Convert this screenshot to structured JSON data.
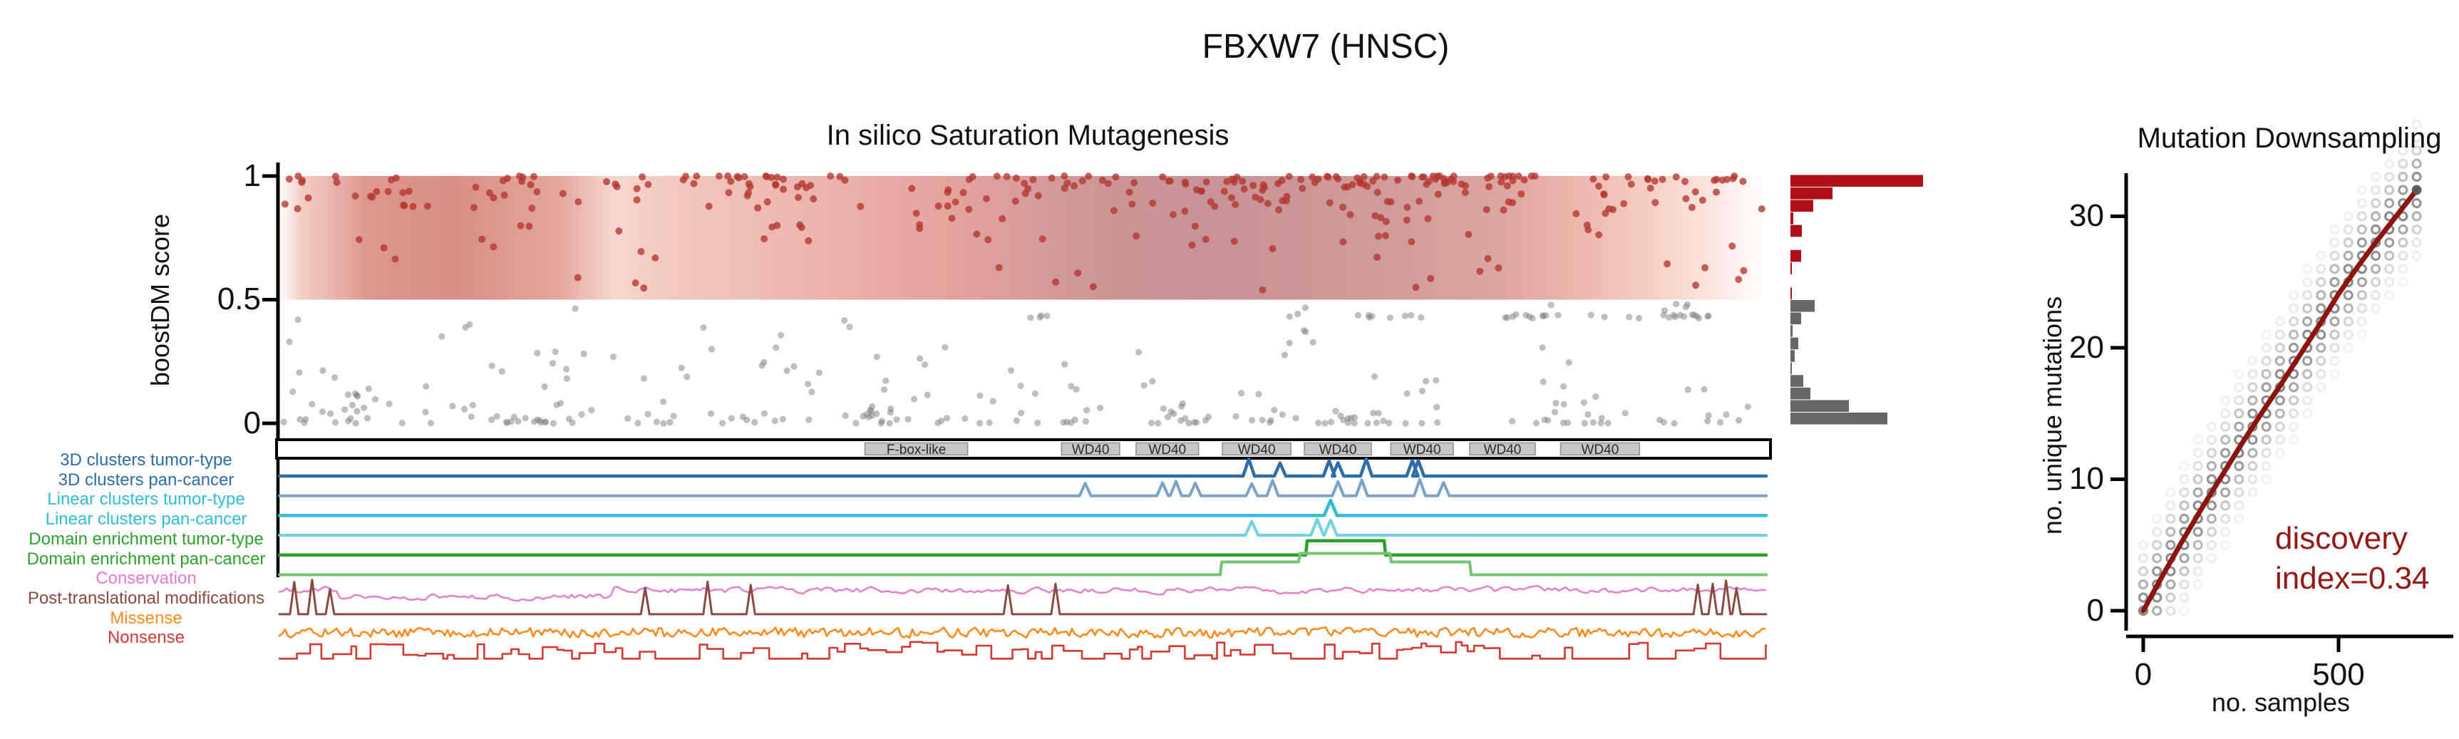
{
  "page": {
    "title": "FBXW7 (HNSC)"
  },
  "chart_data": [
    {
      "id": "saturation-mutagenesis",
      "type": "scatter",
      "title": "In silico Saturation Mutagenesis",
      "ylabel": "boostDM score",
      "ylim": [
        0,
        1
      ],
      "yticks": [
        {
          "value": 1,
          "label": "1"
        },
        {
          "value": 0.5,
          "label": "0.5"
        },
        {
          "value": 0,
          "label": "0"
        }
      ],
      "threshold": 0.5,
      "driver_color": "#b33630",
      "passenger_color": "#808080",
      "band_gradient": [
        [
          0.0,
          "#ffffff"
        ],
        [
          0.015,
          "#f3cdc6"
        ],
        [
          0.06,
          "#dd978c"
        ],
        [
          0.12,
          "#d98f85"
        ],
        [
          0.19,
          "#e4a89e"
        ],
        [
          0.225,
          "#f6d7d0"
        ],
        [
          0.26,
          "#f2c9c1"
        ],
        [
          0.33,
          "#eebbb1"
        ],
        [
          0.4,
          "#e8aca4"
        ],
        [
          0.45,
          "#e3a49c"
        ],
        [
          0.5,
          "#d89c9b"
        ],
        [
          0.56,
          "#cb9597"
        ],
        [
          0.62,
          "#c79397"
        ],
        [
          0.69,
          "#cb9799"
        ],
        [
          0.76,
          "#d29d9c"
        ],
        [
          0.82,
          "#dda59f"
        ],
        [
          0.87,
          "#ecb5aa"
        ],
        [
          0.92,
          "#f5cec3"
        ],
        [
          0.965,
          "#fbe7e0"
        ],
        [
          1.0,
          "#ffffff"
        ]
      ],
      "scatter_gen": {
        "seed": 7,
        "red_bands": [
          {
            "range": [
              0.955,
              1.0
            ],
            "count": 150,
            "bias": "high"
          },
          {
            "range": [
              0.86,
              0.955
            ],
            "count": 100
          },
          {
            "range": [
              0.72,
              0.86
            ],
            "count": 42
          },
          {
            "range": [
              0.53,
              0.72
            ],
            "count": 26
          }
        ],
        "gray_bands": [
          {
            "range": [
              0.0,
              0.05
            ],
            "count": 140,
            "bias": "low"
          },
          {
            "range": [
              0.05,
              0.15
            ],
            "count": 52
          },
          {
            "range": [
              0.15,
              0.3
            ],
            "count": 38
          },
          {
            "range": [
              0.3,
              0.42
            ],
            "count": 16
          },
          {
            "range": [
              0.425,
              0.44
            ],
            "count": 40,
            "run": 0.75,
            "xr": [
              0.47,
              1.0
            ]
          },
          {
            "range": [
              0.44,
              0.49
            ],
            "count": 8
          }
        ]
      },
      "protein_domains": [
        {
          "label": "F-box-like",
          "start": 0.394,
          "end": 0.463
        },
        {
          "label": "WD40",
          "start": 0.526,
          "end": 0.565
        },
        {
          "label": "WD40",
          "start": 0.576,
          "end": 0.618
        },
        {
          "label": "WD40",
          "start": 0.634,
          "end": 0.68
        },
        {
          "label": "WD40",
          "start": 0.689,
          "end": 0.734
        },
        {
          "label": "WD40",
          "start": 0.747,
          "end": 0.789
        },
        {
          "label": "WD40",
          "start": 0.8,
          "end": 0.844
        },
        {
          "label": "WD40",
          "start": 0.861,
          "end": 0.914
        }
      ],
      "tracks": [
        {
          "label": "3D clusters tumor-type",
          "label_color": "#2e6ea8",
          "color": "#2e6ea8",
          "width": 4.5,
          "type": "spikes",
          "spike_h": 22,
          "spike_w": 8,
          "spikes": [
            0.652,
            0.673,
            0.706,
            0.712,
            0.731,
            0.762,
            0.766
          ]
        },
        {
          "label": "3D clusters pan-cancer",
          "label_color": "#2e6ea8",
          "color": "#7ba3c8",
          "width": 4,
          "type": "spikes",
          "spike_h": 20,
          "spike_w": 8,
          "spikes": [
            0.542,
            0.594,
            0.603,
            0.616,
            0.654,
            0.668,
            0.712,
            0.728,
            0.767,
            0.783
          ]
        },
        {
          "label": "Linear clusters tumor-type",
          "label_color": "#31bdd8",
          "color": "#30bcd9",
          "width": 4.5,
          "type": "spikes",
          "spike_h": 20,
          "spike_w": 9,
          "spikes": [
            0.707
          ]
        },
        {
          "label": "Linear clusters pan-cancer",
          "label_color": "#31bdd8",
          "color": "#6fd2e2",
          "width": 4,
          "type": "spikes",
          "spike_h": 21,
          "spike_w": 9,
          "spikes": [
            0.654,
            0.698,
            0.707
          ]
        },
        {
          "label": "Domain enrichment tumor-type",
          "label_color": "#2ea12e",
          "color": "#2ca02c",
          "width": 4.5,
          "type": "plateaus",
          "plateaus": [
            [
              0.69,
              0.743,
              20
            ]
          ]
        },
        {
          "label": "Domain enrichment pan-cancer",
          "label_color": "#2ea12e",
          "color": "#74c476",
          "width": 4,
          "type": "plateaus",
          "plateaus": [
            [
              0.633,
              0.8,
              18
            ],
            [
              0.686,
              0.747,
              30
            ]
          ]
        },
        {
          "label": "Conservation",
          "label_color": "#e879cf",
          "color": "#e583cf",
          "width": 2.6,
          "type": "noise",
          "amp": 7,
          "step": 5,
          "smooth": 0.5,
          "dip": [
            0.04,
            0.225,
            9
          ]
        },
        {
          "label": "Post-translational modifications",
          "label_color": "#8a4a42",
          "color": "#8a4a42",
          "width": 3,
          "type": "spikes",
          "spike_h": 42,
          "spike_w": 6,
          "spikes": [
            0.01,
            0.022,
            0.034,
            0.246,
            0.288,
            0.317,
            0.49,
            0.522,
            0.954,
            0.964,
            0.973,
            0.98
          ]
        },
        {
          "label": "Missense",
          "label_color": "#fb8b1e",
          "color": "#fb8b1e",
          "width": 2.6,
          "type": "noise",
          "amp": 8,
          "step": 4,
          "smooth": 0.15
        },
        {
          "label": "Nonsense",
          "label_color": "#d43a32",
          "color": "#d43a32",
          "width": 2.6,
          "type": "steps",
          "amp": 20,
          "seg": [
            6,
            26
          ]
        }
      ],
      "score_histogram": {
        "orientation": "horizontal",
        "bin_count": 20,
        "driver_bins": [
          186,
          59,
          32,
          4,
          16,
          0,
          15,
          2,
          0,
          2
        ],
        "passenger_bins": [
          34,
          15,
          3,
          11,
          6,
          2,
          18,
          28,
          82,
          136
        ],
        "driver_color": "#ad1117",
        "passenger_color": "#666666"
      }
    },
    {
      "id": "mutation-downsampling",
      "type": "scatter",
      "title": "Mutation Downsampling",
      "xlabel": "no. samples",
      "ylabel": "no. unique mutations",
      "xticks": [
        0,
        500
      ],
      "yticks": [
        0,
        10,
        20,
        30
      ],
      "xlim": [
        0,
        720
      ],
      "ylim": [
        0,
        33
      ],
      "curve_color": "#8c1510",
      "dot_color": "#464646",
      "discovery_index": 0.34,
      "annotation": {
        "line1": "discovery",
        "line2": "index=0.34",
        "color": "#941914"
      },
      "curve": [
        [
          0,
          0
        ],
        [
          50,
          2.7
        ],
        [
          100,
          5.3
        ],
        [
          150,
          7.8
        ],
        [
          200,
          10.2
        ],
        [
          250,
          12.6
        ],
        [
          300,
          14.9
        ],
        [
          350,
          17.1
        ],
        [
          400,
          19.4
        ],
        [
          450,
          21.7
        ],
        [
          500,
          24.1
        ],
        [
          550,
          26.2
        ],
        [
          600,
          28.2
        ],
        [
          650,
          30.1
        ],
        [
          700,
          32
        ]
      ],
      "dots_grid": {
        "x_step": 35,
        "x_max": 700,
        "sigma": 2.0,
        "max_alpha": 0.6,
        "min_alpha": 0.06
      }
    }
  ]
}
